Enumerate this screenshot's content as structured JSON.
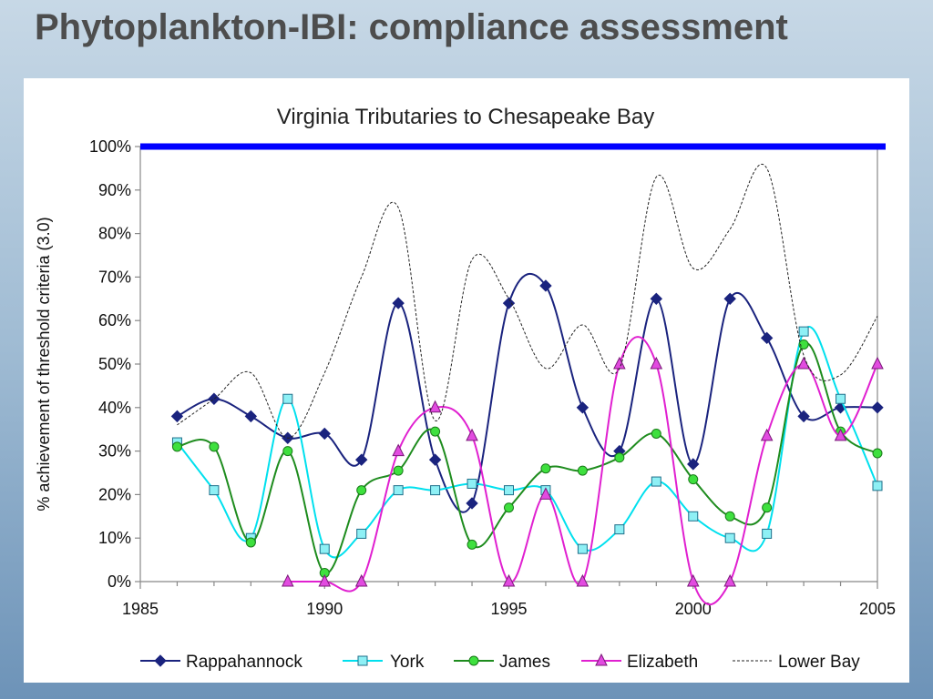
{
  "slide": {
    "title": "Phytoplankton-IBI: compliance assessment"
  },
  "chart_data": {
    "type": "line",
    "title": "Virginia Tributaries to Chesapeake Bay",
    "xlabel": "",
    "ylabel": "% achievement of threshold criteria (3.0)",
    "xlim": [
      1985,
      2005
    ],
    "ylim": [
      0,
      100
    ],
    "xticks": [
      "1985",
      "1990",
      "1995",
      "2000",
      "2005"
    ],
    "yticks": [
      "0%",
      "10%",
      "20%",
      "30%",
      "40%",
      "50%",
      "60%",
      "70%",
      "80%",
      "90%",
      "100%"
    ],
    "grid": false,
    "legend_position": "bottom",
    "reference_line": {
      "y": 100,
      "color": "#0000ff"
    },
    "series": [
      {
        "name": "Rappahannock",
        "color": "#1a237e",
        "marker": "diamond",
        "dash": false,
        "points": [
          [
            1986,
            38
          ],
          [
            1987,
            42
          ],
          [
            1988,
            38
          ],
          [
            1989,
            33
          ],
          [
            1990,
            34
          ],
          [
            1991,
            28
          ],
          [
            1992,
            64
          ],
          [
            1993,
            28
          ],
          [
            1994,
            18
          ],
          [
            1995,
            64
          ],
          [
            1996,
            68
          ],
          [
            1997,
            40
          ],
          [
            1998,
            30
          ],
          [
            1999,
            65
          ],
          [
            2000,
            27
          ],
          [
            2001,
            65
          ],
          [
            2002,
            56
          ],
          [
            2003,
            38
          ],
          [
            2004,
            40
          ],
          [
            2005,
            40
          ]
        ]
      },
      {
        "name": "York",
        "color": "#00e0ee",
        "marker": "square",
        "dash": false,
        "points": [
          [
            1986,
            32
          ],
          [
            1987,
            21
          ],
          [
            1988,
            10
          ],
          [
            1989,
            42
          ],
          [
            1990,
            7.5
          ],
          [
            1991,
            11
          ],
          [
            1992,
            21
          ],
          [
            1993,
            21
          ],
          [
            1994,
            22.5
          ],
          [
            1995,
            21
          ],
          [
            1996,
            21
          ],
          [
            1997,
            7.5
          ],
          [
            1998,
            12
          ],
          [
            1999,
            23
          ],
          [
            2000,
            15
          ],
          [
            2001,
            10
          ],
          [
            2002,
            11
          ],
          [
            2003,
            57.5
          ],
          [
            2004,
            42
          ],
          [
            2005,
            22
          ]
        ]
      },
      {
        "name": "James",
        "color": "#1e8c1e",
        "marker": "circle",
        "dash": false,
        "points": [
          [
            1986,
            31
          ],
          [
            1987,
            31
          ],
          [
            1988,
            9
          ],
          [
            1989,
            30
          ],
          [
            1990,
            2
          ],
          [
            1991,
            21
          ],
          [
            1992,
            25.5
          ],
          [
            1993,
            34.5
          ],
          [
            1994,
            8.5
          ],
          [
            1995,
            17
          ],
          [
            1996,
            26
          ],
          [
            1997,
            25.5
          ],
          [
            1998,
            28.5
          ],
          [
            1999,
            34
          ],
          [
            2000,
            23.5
          ],
          [
            2001,
            15
          ],
          [
            2002,
            17
          ],
          [
            2003,
            54.5
          ],
          [
            2004,
            34.5
          ],
          [
            2005,
            29.5
          ]
        ]
      },
      {
        "name": "Elizabeth",
        "color": "#e020d0",
        "marker": "triangle",
        "dash": false,
        "points": [
          [
            1989,
            0
          ],
          [
            1990,
            0
          ],
          [
            1991,
            0
          ],
          [
            1992,
            30
          ],
          [
            1993,
            40
          ],
          [
            1994,
            33.5
          ],
          [
            1995,
            0
          ],
          [
            1996,
            20
          ],
          [
            1997,
            0
          ],
          [
            1998,
            50
          ],
          [
            1999,
            50
          ],
          [
            2000,
            0
          ],
          [
            2001,
            0
          ],
          [
            2002,
            33.5
          ],
          [
            2003,
            50
          ],
          [
            2004,
            33.5
          ],
          [
            2005,
            50
          ]
        ]
      },
      {
        "name": "Lower Bay",
        "color": "#222222",
        "marker": "none",
        "dash": true,
        "points": [
          [
            1986,
            36
          ],
          [
            1987,
            42
          ],
          [
            1988,
            48
          ],
          [
            1989,
            33
          ],
          [
            1990,
            48
          ],
          [
            1991,
            70
          ],
          [
            1992,
            86
          ],
          [
            1993,
            37
          ],
          [
            1994,
            74
          ],
          [
            1995,
            65
          ],
          [
            1996,
            49
          ],
          [
            1997,
            59
          ],
          [
            1998,
            49
          ],
          [
            1999,
            93
          ],
          [
            2000,
            72
          ],
          [
            2001,
            81
          ],
          [
            2002,
            95
          ],
          [
            2003,
            52
          ],
          [
            2004,
            47.5
          ],
          [
            2005,
            61
          ]
        ]
      }
    ]
  }
}
